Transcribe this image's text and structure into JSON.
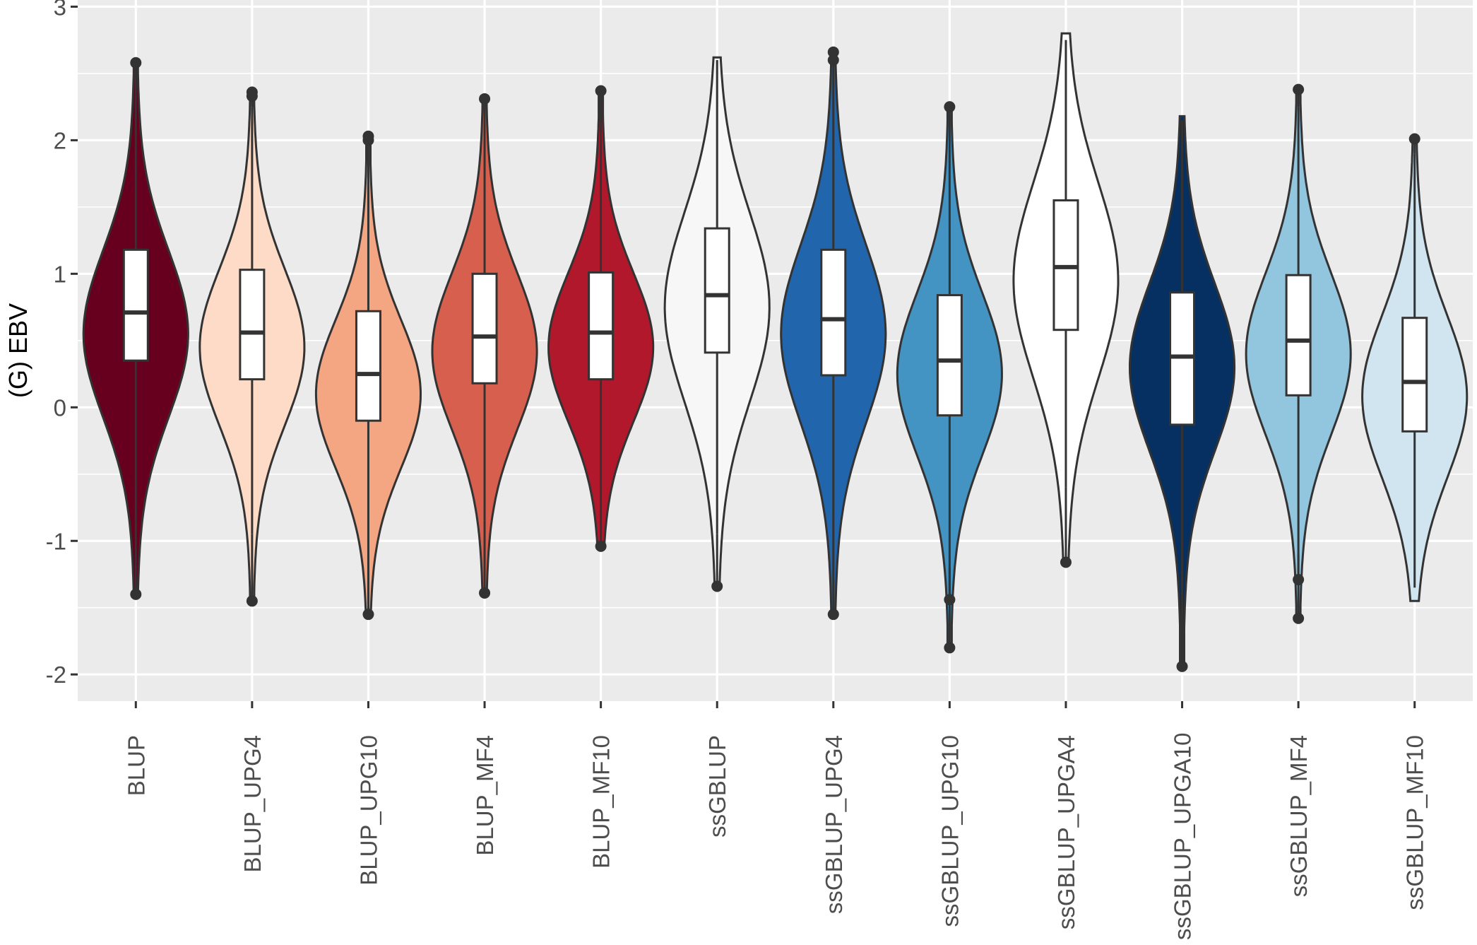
{
  "chart_data": {
    "type": "violin",
    "title": "",
    "xlabel": "",
    "ylabel": "(G) EBV",
    "ylim": [
      -2.2,
      3.05
    ],
    "yticks": [
      -2,
      -1,
      0,
      1,
      2,
      3
    ],
    "ytick_labels": [
      "-2",
      "-1",
      "0",
      "1",
      "2",
      "3"
    ],
    "grid": true,
    "legend": "none",
    "categories": [
      "BLUP",
      "BLUP_UPG4",
      "BLUP_UPG10",
      "BLUP_MF4",
      "BLUP_MF10",
      "ssGBLUP",
      "ssGBLUP_UPG4",
      "ssGBLUP_UPG10",
      "ssGBLUP_UPGA4",
      "ssGBLUP_UPGA10",
      "ssGBLUP_MF4",
      "ssGBLUP_MF10"
    ],
    "series": [
      {
        "category": "BLUP",
        "fill": "#67001f",
        "q1": 0.35,
        "median": 0.71,
        "q3": 1.18,
        "whisker_low": -0.55,
        "whisker_high": 2.35,
        "outliers": [
          2.58,
          -1.4
        ],
        "tail_low": -1.4,
        "tail_high": 2.58,
        "mode": 0.55,
        "spread": 0.62
      },
      {
        "category": "BLUP_UPG4",
        "fill": "#fddbc7",
        "q1": 0.21,
        "median": 0.56,
        "q3": 1.03,
        "whisker_low": -0.95,
        "whisker_high": 2.25,
        "outliers": [
          2.36,
          2.33,
          -1.45
        ],
        "tail_low": -1.45,
        "tail_high": 2.36,
        "mode": 0.45,
        "spread": 0.58
      },
      {
        "category": "BLUP_UPG10",
        "fill": "#f4a582",
        "q1": -0.1,
        "median": 0.25,
        "q3": 0.72,
        "whisker_low": -1.2,
        "whisker_high": 1.95,
        "outliers": [
          2.03,
          2.0,
          -1.55
        ],
        "tail_low": -1.55,
        "tail_high": 2.03,
        "mode": 0.1,
        "spread": 0.55
      },
      {
        "category": "BLUP_MF4",
        "fill": "#d6604d",
        "q1": 0.18,
        "median": 0.53,
        "q3": 1.0,
        "whisker_low": -0.85,
        "whisker_high": 2.25,
        "outliers": [
          2.31,
          -1.39
        ],
        "tail_low": -1.39,
        "tail_high": 2.31,
        "mode": 0.42,
        "spread": 0.58
      },
      {
        "category": "BLUP_MF10",
        "fill": "#b2182b",
        "q1": 0.21,
        "median": 0.56,
        "q3": 1.01,
        "whisker_low": -0.8,
        "whisker_high": 2.25,
        "outliers": [
          2.37,
          -1.04
        ],
        "tail_low": -1.04,
        "tail_high": 2.37,
        "mode": 0.45,
        "spread": 0.55
      },
      {
        "category": "ssGBLUP",
        "fill": "#f7f7f7",
        "q1": 0.41,
        "median": 0.84,
        "q3": 1.34,
        "whisker_low": -0.95,
        "whisker_high": 2.6,
        "outliers": [
          -1.34
        ],
        "tail_low": -1.34,
        "tail_high": 2.62,
        "mode": 0.75,
        "spread": 0.7
      },
      {
        "category": "ssGBLUP_UPG4",
        "fill": "#2166ac",
        "q1": 0.24,
        "median": 0.66,
        "q3": 1.18,
        "whisker_low": -1.2,
        "whisker_high": 2.55,
        "outliers": [
          2.66,
          2.6,
          -1.55
        ],
        "tail_low": -1.55,
        "tail_high": 2.66,
        "mode": 0.55,
        "spread": 0.66
      },
      {
        "category": "ssGBLUP_UPG10",
        "fill": "#4393c3",
        "q1": -0.06,
        "median": 0.35,
        "q3": 0.84,
        "whisker_low": -1.2,
        "whisker_high": 2.2,
        "outliers": [
          2.25,
          -1.44,
          -1.8
        ],
        "tail_low": -1.8,
        "tail_high": 2.25,
        "mode": 0.25,
        "spread": 0.6
      },
      {
        "category": "ssGBLUP_UPGA4",
        "fill": "#ffffff",
        "q1": 0.58,
        "median": 1.05,
        "q3": 1.55,
        "whisker_low": -0.6,
        "whisker_high": 2.75,
        "outliers": [
          -1.16
        ],
        "tail_low": -1.16,
        "tail_high": 2.8,
        "mode": 0.95,
        "spread": 0.72
      },
      {
        "category": "ssGBLUP_UPGA10",
        "fill": "#053061",
        "q1": -0.13,
        "median": 0.38,
        "q3": 0.86,
        "whisker_low": -1.45,
        "whisker_high": 2.15,
        "outliers": [
          -1.94
        ],
        "tail_low": -1.94,
        "tail_high": 2.18,
        "mode": 0.3,
        "spread": 0.62
      },
      {
        "category": "ssGBLUP_MF4",
        "fill": "#92c5de",
        "q1": 0.09,
        "median": 0.5,
        "q3": 0.99,
        "whisker_low": -1.1,
        "whisker_high": 2.25,
        "outliers": [
          2.38,
          -1.29,
          -1.58
        ],
        "tail_low": -1.58,
        "tail_high": 2.38,
        "mode": 0.4,
        "spread": 0.6
      },
      {
        "category": "ssGBLUP_MF10",
        "fill": "#d1e5f0",
        "q1": -0.18,
        "median": 0.19,
        "q3": 0.67,
        "whisker_low": -1.35,
        "whisker_high": 1.9,
        "outliers": [
          2.01
        ],
        "tail_low": -1.45,
        "tail_high": 2.01,
        "mode": 0.08,
        "spread": 0.6
      }
    ]
  }
}
